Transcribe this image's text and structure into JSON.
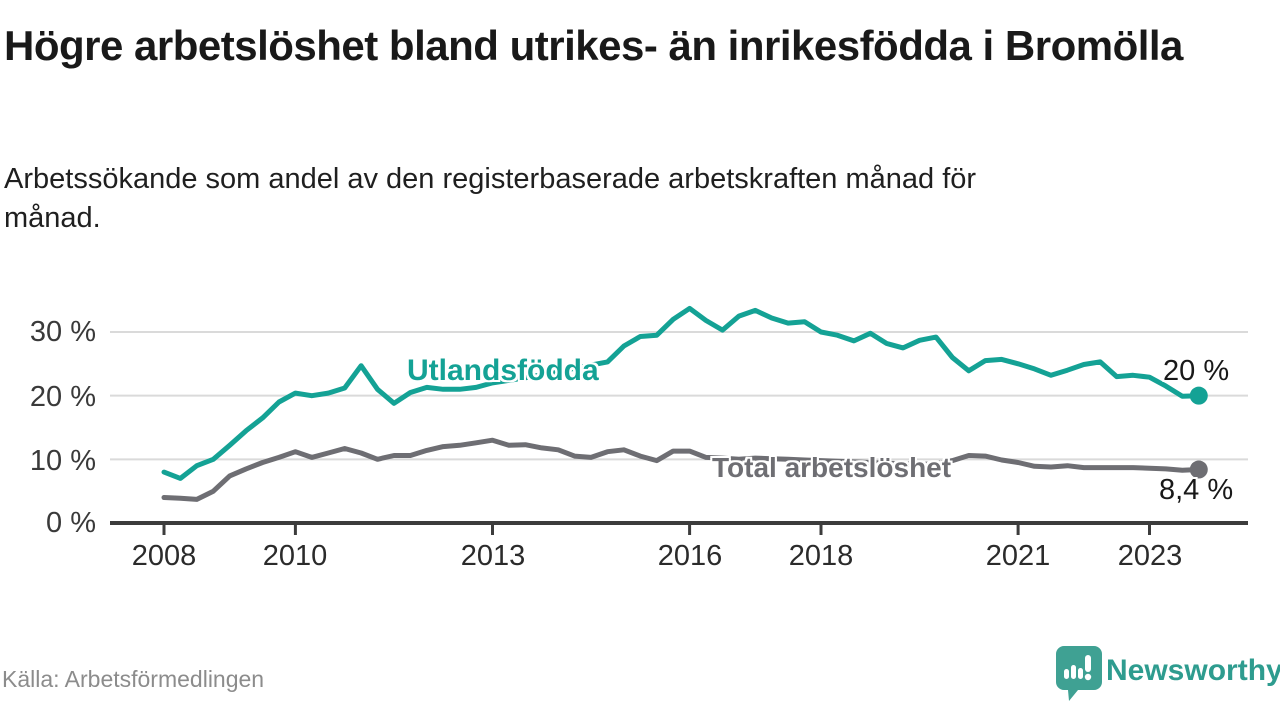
{
  "header": {
    "title": "Högre arbetslöshet bland utrikes- än inrikesfödda i Bromölla",
    "subtitle": "Arbetssökande som andel av den registerbaserade arbetskraften månad för månad."
  },
  "footer": {
    "source": "Källa: Arbetsförmedlingen",
    "brand": "Newsworthy",
    "logo_icon": "bar-chart-speech-bubble-icon"
  },
  "colors": {
    "foreign_born_line": "#14a295",
    "total_line": "#6e6e73",
    "axis": "#3c3c3c",
    "grid": "#dadada",
    "title_text": "#191919",
    "source_text": "#8c8c8c",
    "brand_teal": "#2e9c8f",
    "logo_teal": "#3fa193"
  },
  "chart_data": {
    "type": "line",
    "title": "Högre arbetslöshet bland utrikes- än inrikesfödda i Bromölla",
    "subtitle": "Arbetssökande som andel av den registerbaserade arbetskraften månad för månad.",
    "unit": "%",
    "grid": true,
    "legend_position": "inline-labels",
    "x_axis": {
      "tick_years": [
        2008,
        2010,
        2013,
        2016,
        2018,
        2021,
        2023
      ],
      "labels": [
        "2008",
        "2010",
        "2013",
        "2016",
        "2018",
        "2021",
        "2023"
      ],
      "range": [
        2007.6,
        2024.5
      ]
    },
    "y_axis": {
      "ticks": [
        0,
        10,
        20,
        30
      ],
      "labels": [
        "0 %",
        "10 %",
        "20 %",
        "30 %"
      ],
      "labels_desc": [
        "30 %",
        "20 %",
        "10 %",
        "0 %"
      ],
      "range": [
        0,
        35
      ],
      "tick_suffix": " %"
    },
    "x": [
      2008,
      2008.25,
      2008.5,
      2008.75,
      2009,
      2009.25,
      2009.5,
      2009.75,
      2010,
      2010.25,
      2010.5,
      2010.75,
      2011,
      2011.25,
      2011.5,
      2011.75,
      2012,
      2012.25,
      2012.5,
      2012.75,
      2013,
      2013.25,
      2013.5,
      2013.75,
      2014,
      2014.25,
      2014.5,
      2014.75,
      2015,
      2015.25,
      2015.5,
      2015.75,
      2016,
      2016.25,
      2016.5,
      2016.75,
      2017,
      2017.25,
      2017.5,
      2017.75,
      2018,
      2018.25,
      2018.5,
      2018.75,
      2019,
      2019.25,
      2019.5,
      2019.75,
      2020,
      2020.25,
      2020.5,
      2020.75,
      2021,
      2021.25,
      2021.5,
      2021.75,
      2022,
      2022.25,
      2022.5,
      2022.75,
      2023,
      2023.25,
      2023.5,
      2023.75
    ],
    "series": [
      {
        "name": "Utlandsfödda",
        "color": "#14a295",
        "end_label": "20 %",
        "end_value": 20,
        "values": [
          8,
          7,
          9,
          10,
          12.2,
          14.5,
          16.5,
          19,
          20.4,
          20,
          20.4,
          21.2,
          24.7,
          21,
          18.8,
          20.5,
          21.3,
          21,
          21,
          21.3,
          22,
          22.4,
          22.8,
          23.3,
          23.8,
          24.3,
          24.8,
          25.3,
          27.8,
          29.3,
          29.5,
          32,
          33.7,
          31.8,
          30.3,
          32.5,
          33.4,
          32.2,
          31.4,
          31.6,
          30,
          29.5,
          28.6,
          29.8,
          28.2,
          27.5,
          28.7,
          29.2,
          26,
          23.9,
          25.5,
          25.7,
          25,
          24.2,
          23.2,
          24,
          24.9,
          25.3,
          23,
          23.2,
          22.9,
          21.5,
          19.9,
          20
        ]
      },
      {
        "name": "Total arbetslöshet",
        "color": "#6e6e73",
        "end_label": "8,4 %",
        "end_value": 8.4,
        "values": [
          4,
          3.9,
          3.7,
          5,
          7.4,
          8.5,
          9.5,
          10.3,
          11.2,
          10.3,
          11,
          11.7,
          11,
          10,
          10.6,
          10.6,
          11.4,
          12,
          12.2,
          12.6,
          13,
          12.2,
          12.3,
          11.8,
          11.5,
          10.5,
          10.3,
          11.2,
          11.5,
          10.5,
          9.8,
          11.3,
          11.3,
          10.3,
          10.2,
          10,
          10.2,
          10.1,
          10,
          9.9,
          9.8,
          9.7,
          9.6,
          9.5,
          9.4,
          9.3,
          9.2,
          9.3,
          9.8,
          10.6,
          10.5,
          9.9,
          9.5,
          8.9,
          8.8,
          9,
          8.7,
          8.7,
          8.7,
          8.7,
          8.6,
          8.5,
          8.3,
          8.4
        ]
      }
    ]
  }
}
